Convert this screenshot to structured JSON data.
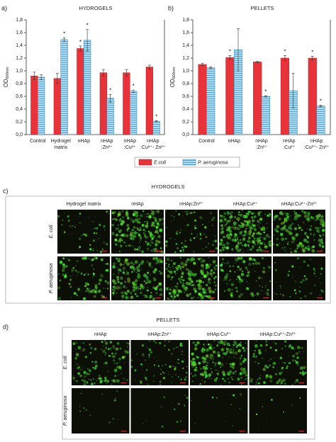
{
  "chart_data": [
    {
      "type": "bar",
      "panel_label": "a)",
      "title": "HYDROGELS",
      "y_label": "OD",
      "y_label_sub": "600nm",
      "categories": [
        "Control",
        "Hydrogel matrix",
        "nHAp",
        "nHAp :Zn²⁺",
        "nHAp :Cu²⁺",
        "nHAp :Cu²⁺- Zn²⁺"
      ],
      "series": [
        {
          "name": "E.coli",
          "color": "#e8333b",
          "values": [
            0.92,
            0.88,
            1.35,
            0.97,
            0.97,
            1.06
          ],
          "errors": [
            0.06,
            0.08,
            0.04,
            0.05,
            0.05,
            0.03
          ],
          "annotations": [
            null,
            null,
            "*",
            null,
            null,
            null
          ]
        },
        {
          "name": "P. aeruginosa",
          "color": "#a9dcf2",
          "hatch": true,
          "values": [
            0.9,
            1.49,
            1.48,
            0.57,
            0.68,
            0.21
          ],
          "errors": [
            0.04,
            0.03,
            0.17,
            0.06,
            0.02,
            0.01
          ],
          "annotations": [
            null,
            "*",
            "*",
            "*",
            "*",
            "*"
          ]
        }
      ],
      "ylim": [
        0,
        1.8
      ],
      "yticks": [
        {
          "value": 0,
          "label": "0,0"
        },
        {
          "value": 0.2,
          "label": "0,2"
        },
        {
          "value": 0.4,
          "label": "0,4"
        },
        {
          "value": 0.6,
          "label": "0,6"
        },
        {
          "value": 0.8,
          "label": "0,8"
        },
        {
          "value": 1.0,
          "label": "1,0"
        },
        {
          "value": 1.2,
          "label": "1,2"
        },
        {
          "value": 1.4,
          "label": "1,4"
        },
        {
          "value": 1.6,
          "label": "1,6"
        },
        {
          "value": 1.8,
          "label": "1,8"
        }
      ]
    },
    {
      "type": "bar",
      "panel_label": "b)",
      "title": "PELLETS",
      "y_label": "OD",
      "y_label_sub": "600nm",
      "categories": [
        "Control",
        "nHAp",
        "nHAp :Zn²⁺",
        "nHAp :Cu²⁺",
        "nHAp :Cu²⁺- Zn²⁺"
      ],
      "series": [
        {
          "name": "E.coli",
          "color": "#e8333b",
          "values": [
            1.1,
            1.21,
            1.14,
            1.2,
            1.2
          ],
          "errors": [
            0.02,
            0.03,
            0.01,
            0.04,
            0.03
          ],
          "annotations": [
            null,
            "*",
            null,
            "*",
            "*"
          ]
        },
        {
          "name": "P. aeruginosa",
          "color": "#a9dcf2",
          "hatch": true,
          "values": [
            1.05,
            1.33,
            0.6,
            0.69,
            0.45
          ],
          "errors": [
            0.01,
            0.33,
            0.01,
            0.27,
            0.01
          ],
          "annotations": [
            null,
            null,
            "*",
            null,
            "*"
          ]
        }
      ],
      "ylim": [
        0,
        1.8
      ],
      "yticks": [
        {
          "value": 0,
          "label": "0,0"
        },
        {
          "value": 0.2,
          "label": "0,2"
        },
        {
          "value": 0.4,
          "label": "0,4"
        },
        {
          "value": 0.6,
          "label": "0,6"
        },
        {
          "value": 0.8,
          "label": "0,8"
        },
        {
          "value": 1.0,
          "label": "1,0"
        },
        {
          "value": 1.2,
          "label": "1,2"
        },
        {
          "value": 1.4,
          "label": "1,4"
        },
        {
          "value": 1.6,
          "label": "1,6"
        },
        {
          "value": 1.8,
          "label": "1,8"
        }
      ]
    }
  ],
  "panel_c": {
    "label": "c)",
    "title": "HYDROGELS",
    "columns": [
      "Hydrogel matrix",
      "nHAp",
      "nHAp:Zn²⁺",
      "nHAp:Cu²⁺",
      "nHAp:Cu²⁺-Zn²⁺"
    ],
    "rows": [
      "E. coli",
      "P. aeruginosa"
    ]
  },
  "panel_d": {
    "label": "d)",
    "title": "PELLETS",
    "columns": [
      "nHAp",
      "nHAp:Zn²⁺",
      "nHAp:Cu²⁺",
      "nHAp:Cu²⁺-Zn²⁺"
    ],
    "rows": [
      "E. coli",
      "P. aeruginosa"
    ]
  }
}
